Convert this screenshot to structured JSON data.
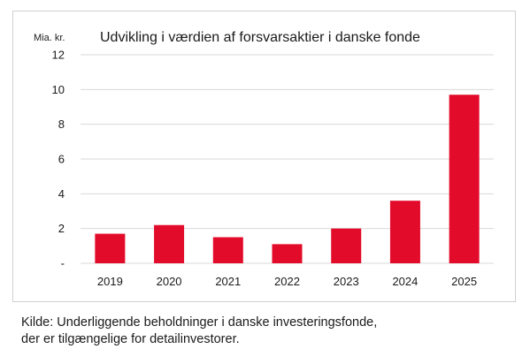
{
  "chart_data": {
    "type": "bar",
    "title": "Udvikling i værdien af forsvarsaktier i danske fonde",
    "ylabel": "Mia. kr.",
    "xlabel": "",
    "categories": [
      "2019",
      "2020",
      "2021",
      "2022",
      "2023",
      "2024",
      "2025"
    ],
    "values": [
      1.7,
      2.2,
      1.5,
      1.1,
      2.0,
      3.6,
      9.7
    ],
    "ylim": [
      0,
      12
    ],
    "yticks": [
      0,
      2,
      4,
      6,
      8,
      10,
      12
    ],
    "ytick_labels": [
      "-",
      "2",
      "4",
      "6",
      "8",
      "10",
      "12"
    ],
    "grid": true,
    "bar_color": "#e30b2a",
    "grid_color": "#d9d9d9"
  },
  "source": {
    "line1": "Kilde: Underliggende beholdninger i danske investeringsfonde,",
    "line2": "der er tilgængelige for detailinvestorer."
  }
}
